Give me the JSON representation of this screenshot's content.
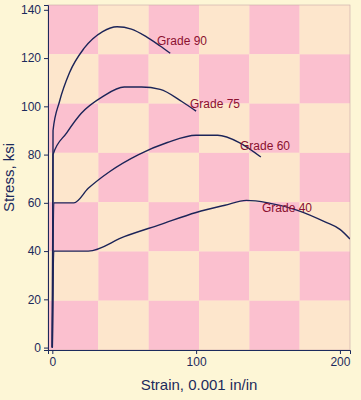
{
  "chart_data": {
    "type": "line",
    "x_label": "Strain, 0.001 in/in",
    "y_label": "Stress, ksi",
    "xlim": [
      -3,
      207
    ],
    "ylim": [
      -1,
      142
    ],
    "xticks": [
      0,
      100,
      200
    ],
    "yticks": [
      0,
      20,
      40,
      60,
      80,
      100,
      120,
      140
    ],
    "grid": false,
    "series": [
      {
        "name": "Grade 90",
        "color": "#1c2458",
        "marker": "none",
        "line_style": "solid",
        "x": [
          0,
          0.5,
          5,
          12,
          22,
          35,
          45,
          55,
          65,
          75,
          82
        ],
        "values": [
          0,
          90,
          102,
          114,
          124,
          131,
          133,
          132,
          129,
          125,
          122
        ]
      },
      {
        "name": "Grade 75",
        "color": "#1c2458",
        "marker": "none",
        "line_style": "solid",
        "x": [
          0,
          0.5,
          10,
          20,
          35,
          50,
          62,
          75,
          90,
          100
        ],
        "values": [
          0,
          80,
          89,
          97,
          104,
          108,
          108,
          107,
          102,
          98
        ]
      },
      {
        "name": "Grade 60",
        "color": "#1c2458",
        "marker": "none",
        "line_style": "solid",
        "x": [
          0,
          1,
          15,
          25,
          40,
          60,
          80,
          100,
          115,
          130,
          145
        ],
        "values": [
          0,
          60,
          60,
          66,
          73,
          80,
          85,
          88,
          88,
          85,
          79
        ]
      },
      {
        "name": "Grade 40",
        "color": "#1c2458",
        "marker": "none",
        "line_style": "solid",
        "x": [
          0,
          1,
          25,
          50,
          75,
          100,
          120,
          135,
          150,
          170,
          190,
          200,
          207
        ],
        "values": [
          0,
          40,
          40,
          46,
          51,
          56,
          59,
          61,
          60,
          57,
          52,
          49,
          45
        ]
      }
    ]
  }
}
